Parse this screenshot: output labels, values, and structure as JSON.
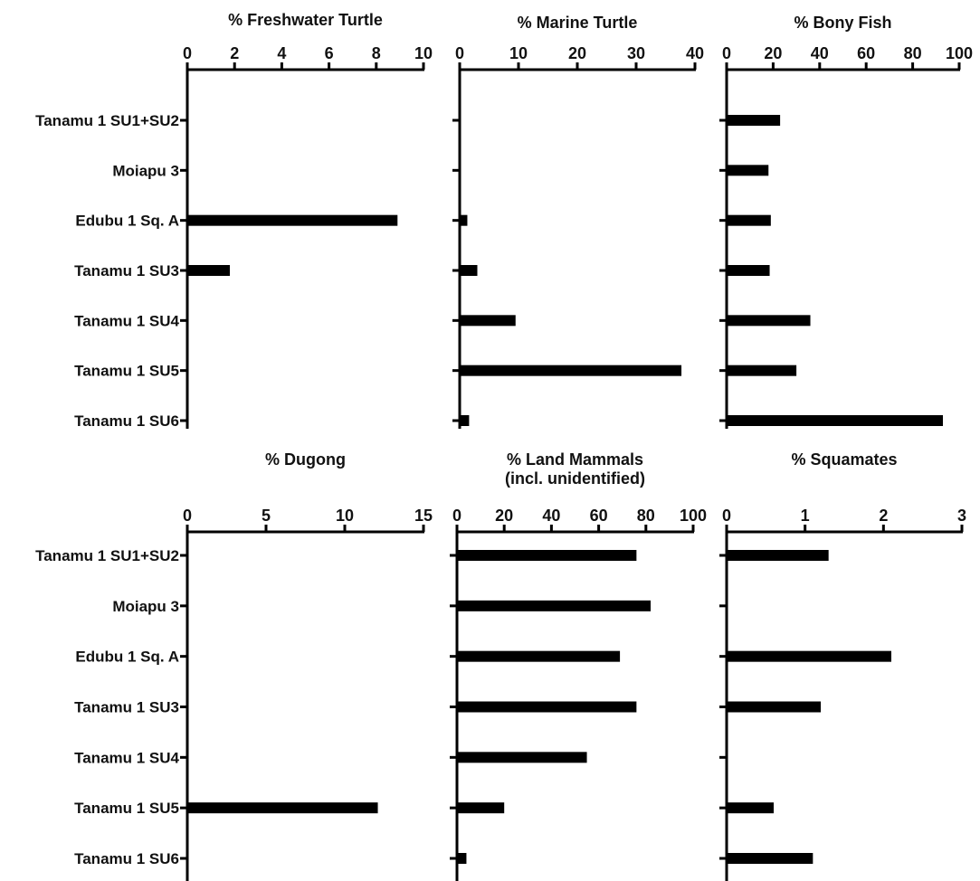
{
  "colors": {
    "bar": "#000000",
    "axis": "#000000",
    "text": "#111111",
    "background": "#ffffff"
  },
  "chart_data": [
    {
      "type": "bar",
      "orientation": "horizontal",
      "title": "% Freshwater Turtle",
      "categories": [
        "Tanamu 1 SU1+SU2",
        "Moiapu 3",
        "Edubu 1 Sq. A",
        "Tanamu 1 SU3",
        "Tanamu 1 SU4",
        "Tanamu 1 SU5",
        "Tanamu 1 SU6"
      ],
      "values": [
        0,
        0,
        8.9,
        1.8,
        0,
        0,
        0
      ],
      "xlim": [
        0,
        10
      ],
      "ticks": [
        0,
        2,
        4,
        6,
        8,
        10
      ],
      "show_category_labels": true
    },
    {
      "type": "bar",
      "orientation": "horizontal",
      "title": "% Marine Turtle",
      "categories": [
        "Tanamu 1 SU1+SU2",
        "Moiapu 3",
        "Edubu 1 Sq. A",
        "Tanamu 1 SU3",
        "Tanamu 1 SU4",
        "Tanamu 1 SU5",
        "Tanamu 1 SU6"
      ],
      "values": [
        0,
        0,
        1.3,
        3.0,
        9.5,
        37.7,
        1.6
      ],
      "xlim": [
        0,
        40
      ],
      "ticks": [
        0,
        10,
        20,
        30,
        40
      ],
      "show_category_labels": false
    },
    {
      "type": "bar",
      "orientation": "horizontal",
      "title": "% Bony Fish",
      "categories": [
        "Tanamu 1 SU1+SU2",
        "Moiapu 3",
        "Edubu 1 Sq. A",
        "Tanamu 1 SU3",
        "Tanamu 1 SU4",
        "Tanamu 1 SU5",
        "Tanamu 1 SU6"
      ],
      "values": [
        23,
        18,
        19,
        18.5,
        36,
        30,
        93
      ],
      "xlim": [
        0,
        100
      ],
      "ticks": [
        0,
        20,
        40,
        60,
        80,
        100
      ],
      "show_category_labels": false
    },
    {
      "type": "bar",
      "orientation": "horizontal",
      "title": "% Dugong",
      "categories": [
        "Tanamu 1 SU1+SU2",
        "Moiapu 3",
        "Edubu 1 Sq. A",
        "Tanamu 1 SU3",
        "Tanamu 1 SU4",
        "Tanamu 1 SU5",
        "Tanamu 1 SU6"
      ],
      "values": [
        0,
        0,
        0,
        0,
        0,
        12.1,
        0
      ],
      "xlim": [
        0,
        15
      ],
      "ticks": [
        0,
        5,
        10,
        15
      ],
      "show_category_labels": true
    },
    {
      "type": "bar",
      "orientation": "horizontal",
      "title": "% Land Mammals",
      "subtitle": "(incl. unidentified)",
      "categories": [
        "Tanamu 1 SU1+SU2",
        "Moiapu 3",
        "Edubu 1 Sq. A",
        "Tanamu 1 SU3",
        "Tanamu 1 SU4",
        "Tanamu 1 SU5",
        "Tanamu 1 SU6"
      ],
      "values": [
        76,
        82,
        69,
        76,
        55,
        20,
        4
      ],
      "xlim": [
        0,
        100
      ],
      "ticks": [
        0,
        20,
        40,
        60,
        80,
        100
      ],
      "show_category_labels": false
    },
    {
      "type": "bar",
      "orientation": "horizontal",
      "title": "% Squamates",
      "categories": [
        "Tanamu 1 SU1+SU2",
        "Moiapu 3",
        "Edubu 1 Sq. A",
        "Tanamu 1 SU3",
        "Tanamu 1 SU4",
        "Tanamu 1 SU5",
        "Tanamu 1 SU6"
      ],
      "values": [
        1.3,
        0,
        2.1,
        1.2,
        0,
        0.6,
        1.1
      ],
      "xlim": [
        0,
        3
      ],
      "ticks": [
        0,
        1,
        2,
        3
      ],
      "show_category_labels": false
    }
  ]
}
